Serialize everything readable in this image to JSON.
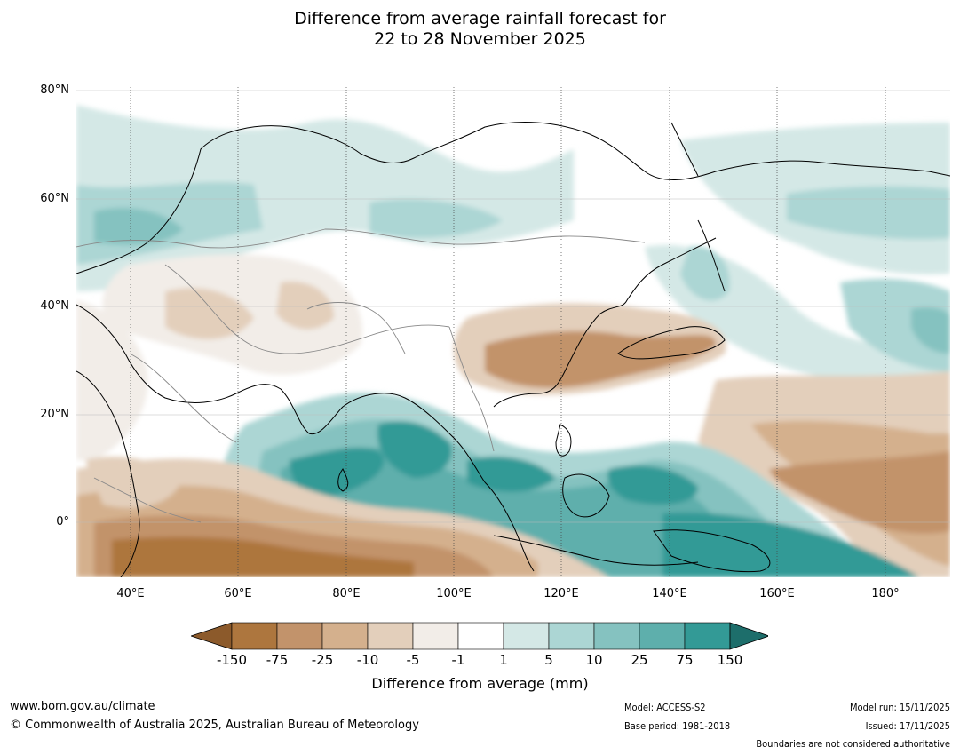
{
  "title": {
    "line1": "Difference from average rainfall forecast for",
    "line2": "22 to 28 November 2025"
  },
  "map": {
    "lat_labels": [
      "80°N",
      "60°N",
      "40°N",
      "20°N",
      "0°"
    ],
    "lon_labels": [
      "40°E",
      "60°E",
      "80°E",
      "100°E",
      "120°E",
      "140°E",
      "160°E",
      "180°"
    ]
  },
  "colorbar": {
    "ticks": [
      "-150",
      "-75",
      "-25",
      "-10",
      "-5",
      "-1",
      "1",
      "5",
      "10",
      "25",
      "75",
      "150"
    ],
    "colors": [
      "#8c5a2b",
      "#ad763e",
      "#c2936b",
      "#d4b08d",
      "#e3cfbb",
      "#f2ede8",
      "#ffffff",
      "#d4e8e6",
      "#acd6d4",
      "#85c2c0",
      "#5eafac",
      "#339a96",
      "#1d6e6b"
    ],
    "label": "Difference from average (mm)"
  },
  "footer": {
    "url": "www.bom.gov.au/climate",
    "copyright": "© Commonwealth of Australia 2025, Australian Bureau of Meteorology",
    "model": "Model: ACCESS-S2",
    "base_period": "Base period: 1981-2018",
    "model_run": "Model run: 15/11/2025",
    "issued": "Issued: 17/11/2025",
    "disclaimer": "Boundaries are not considered authoritative"
  }
}
